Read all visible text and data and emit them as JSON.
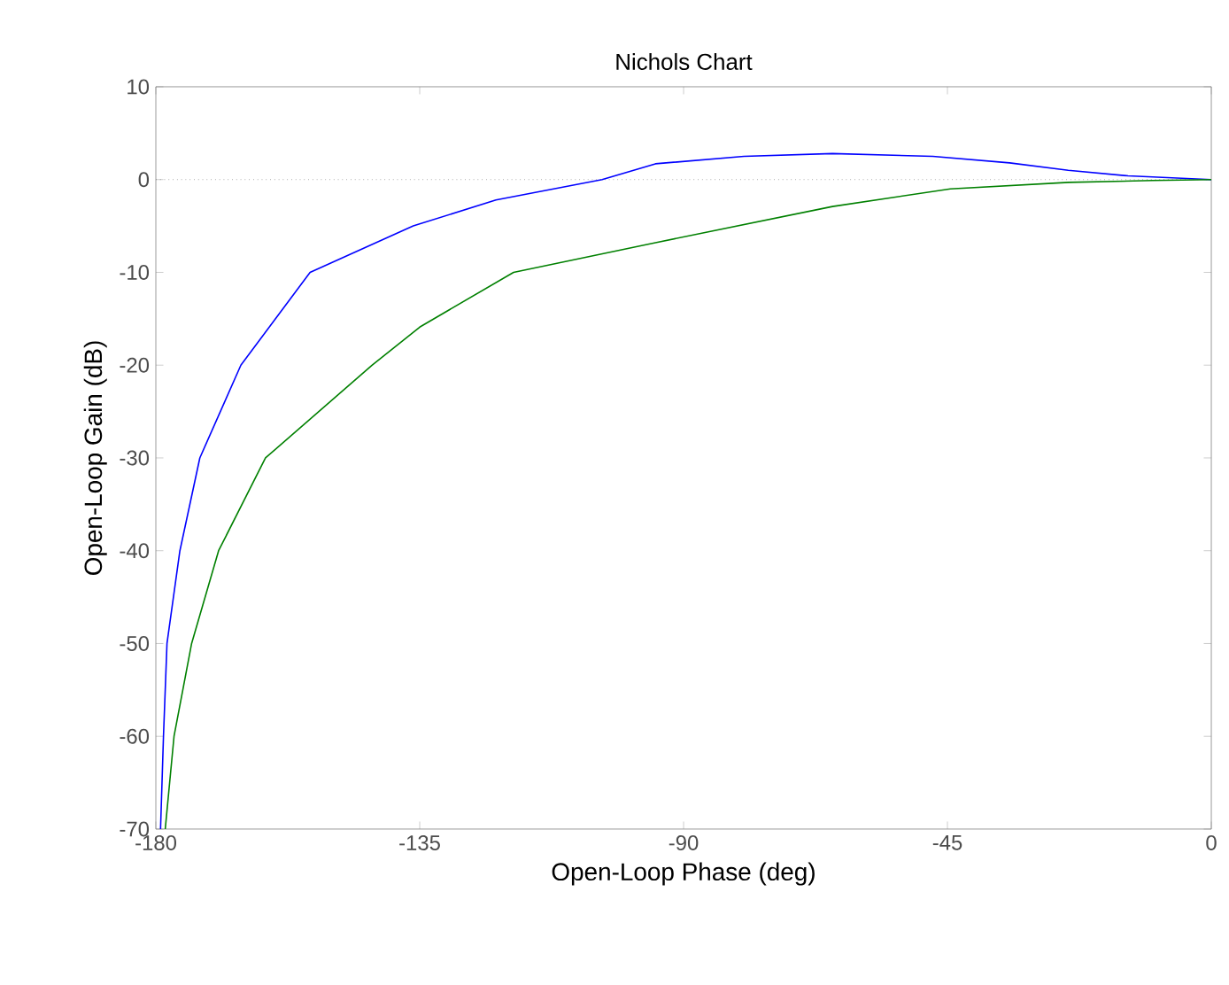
{
  "chart_data": {
    "type": "line",
    "title": "Nichols Chart",
    "xlabel": "Open-Loop Phase (deg)",
    "ylabel": "Open-Loop Gain (dB)",
    "series": [
      {
        "color": "#0000ff",
        "x": [
          -179.2,
          -178.7,
          -178.1,
          -175.9,
          -172.5,
          -165.5,
          -153.7,
          -136.1,
          -122,
          -103.9,
          -94.8,
          -79.7,
          -64.6,
          -47.5,
          -34.4,
          -24.4,
          -14.2,
          0
        ],
        "values": [
          -70,
          -60,
          -50,
          -40,
          -30,
          -20,
          -10,
          -5,
          -2.2,
          0,
          1.7,
          2.5,
          2.8,
          2.5,
          1.8,
          1.0,
          0.4,
          0
        ]
      },
      {
        "color": "#008000",
        "x": [
          -178.4,
          -176.9,
          -173.9,
          -169.3,
          -161.3,
          -143.1,
          -135,
          -119,
          -94.8,
          -64.6,
          -44.5,
          -24.3,
          -10,
          0
        ],
        "values": [
          -70,
          -60,
          -50,
          -40,
          -30,
          -20,
          -15.9,
          -10,
          -6.8,
          -2.9,
          -1,
          -0.3,
          -0.1,
          0
        ]
      }
    ],
    "xlim": [
      -180,
      0
    ],
    "ylim": [
      -70,
      10
    ],
    "xticks": [
      -180,
      -135,
      -90,
      -45,
      0
    ],
    "yticks": [
      -70,
      -60,
      -50,
      -40,
      -30,
      -20,
      -10,
      0,
      10
    ],
    "ref_lines": [
      {
        "axis": "y",
        "value": 0,
        "line_style": "dotted",
        "color": "#808080"
      }
    ],
    "grid": false,
    "line_style": "solid",
    "marker": "none"
  }
}
